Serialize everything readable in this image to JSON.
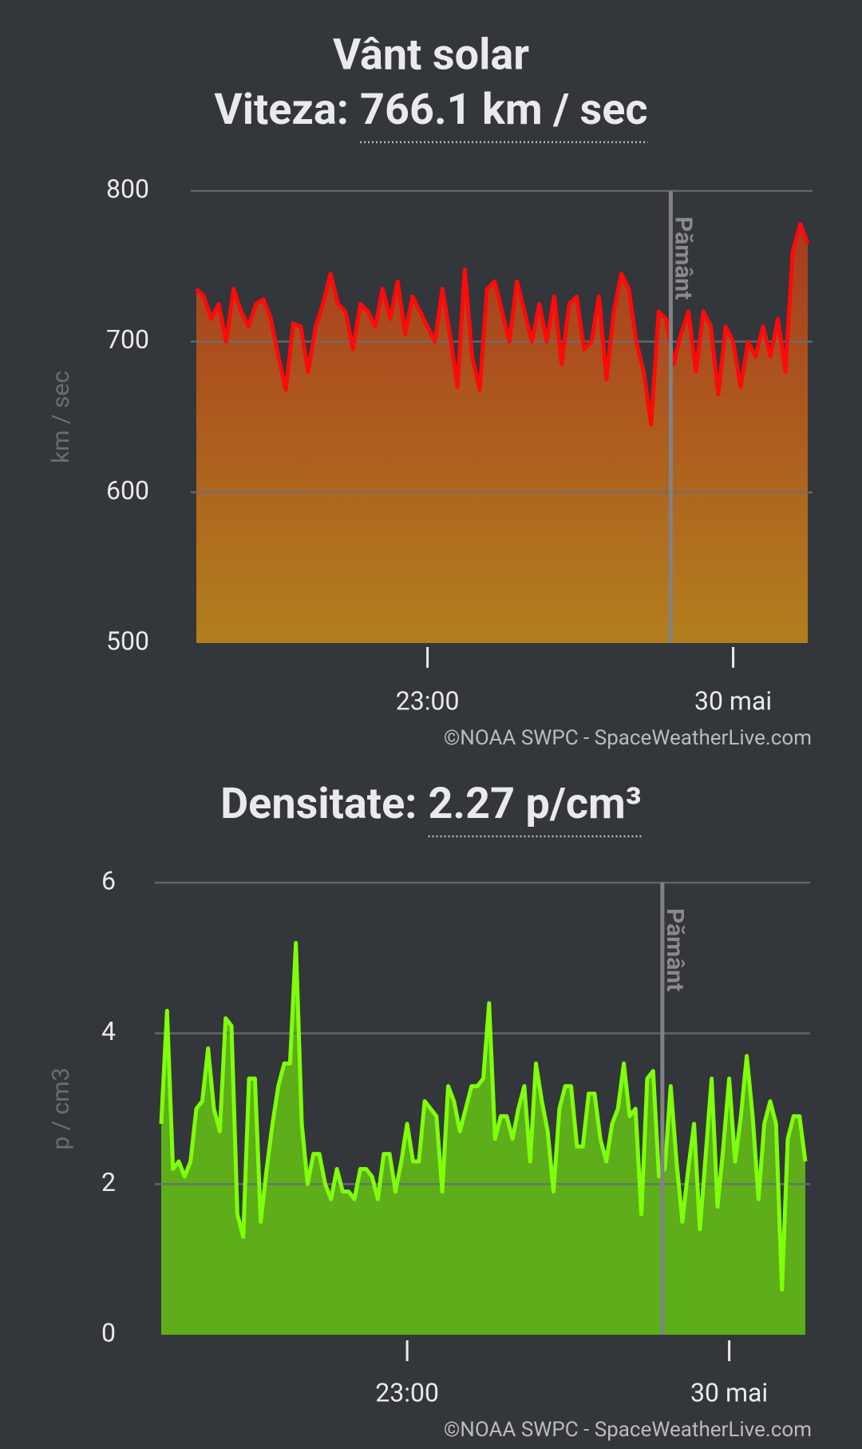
{
  "chart_data": [
    {
      "type": "area",
      "title": "Vânt solar",
      "subtitle_label": "Viteza:",
      "subtitle_value": "766.1 km / sec",
      "y_label": "km / sec",
      "marker_label": "Pământ",
      "source": "©NOAA SWPC - SpaceWeatherLive.com",
      "line_color": "#ff0a0a",
      "fill_colors": [
        "#a83a1f",
        "#b27f1d"
      ],
      "grid": true,
      "ylim": [
        500,
        800
      ],
      "yticks": [
        500,
        600,
        700,
        800
      ],
      "categories": [
        null,
        null,
        null,
        null,
        null,
        null,
        null,
        null,
        null,
        null,
        null,
        null,
        null,
        null,
        null,
        null,
        null,
        null,
        null,
        null,
        null,
        null,
        null,
        null,
        null,
        null,
        null,
        null,
        null,
        null,
        null,
        "23:00",
        null,
        null,
        null,
        null,
        null,
        null,
        null,
        null,
        null,
        null,
        null,
        null,
        null,
        null,
        null,
        null,
        null,
        null,
        null,
        null,
        null,
        null,
        null,
        null,
        null,
        null,
        null,
        null,
        null,
        null,
        null,
        null,
        null,
        null,
        null,
        null,
        null,
        null,
        null,
        null,
        "30 mai",
        null,
        null,
        null,
        null,
        null,
        null,
        null,
        null,
        null,
        null
      ],
      "values": [
        735,
        730,
        715,
        725,
        700,
        735,
        720,
        710,
        725,
        728,
        715,
        690,
        668,
        712,
        710,
        680,
        710,
        725,
        745,
        725,
        720,
        695,
        725,
        720,
        710,
        735,
        715,
        740,
        705,
        730,
        720,
        710,
        700,
        735,
        705,
        670,
        748,
        690,
        668,
        735,
        740,
        720,
        700,
        740,
        720,
        700,
        725,
        700,
        730,
        685,
        725,
        730,
        695,
        700,
        730,
        675,
        720,
        745,
        735,
        700,
        680,
        645,
        720,
        715,
        685,
        705,
        720,
        680,
        720,
        710,
        665,
        710,
        700,
        670,
        700,
        690,
        710,
        690,
        715,
        680,
        760,
        778,
        765
      ]
    },
    {
      "type": "area",
      "subtitle_label": "Densitate:",
      "subtitle_value": "2.27 p/cm³",
      "y_label": "p / cm3",
      "marker_label": "Pământ",
      "source": "©NOAA SWPC - SpaceWeatherLive.com",
      "line_color": "#7fff0a",
      "fill_colors": [
        "#5dae1a",
        "#5dae1a"
      ],
      "grid": true,
      "ylim": [
        0,
        6
      ],
      "yticks": [
        0,
        2,
        4,
        6
      ],
      "categories": [
        null,
        null,
        null,
        null,
        null,
        null,
        null,
        null,
        null,
        null,
        null,
        null,
        null,
        null,
        null,
        null,
        null,
        null,
        null,
        null,
        null,
        null,
        null,
        null,
        null,
        null,
        null,
        null,
        null,
        null,
        null,
        null,
        null,
        null,
        null,
        null,
        null,
        null,
        null,
        null,
        null,
        null,
        "23:00",
        null,
        null,
        null,
        null,
        null,
        null,
        null,
        null,
        null,
        null,
        null,
        null,
        null,
        null,
        null,
        null,
        null,
        null,
        null,
        null,
        null,
        null,
        null,
        null,
        null,
        null,
        null,
        null,
        null,
        null,
        null,
        null,
        null,
        null,
        null,
        null,
        null,
        null,
        null,
        null,
        null,
        null,
        null,
        null,
        null,
        null,
        null,
        null,
        null,
        null,
        null,
        null,
        null,
        null,
        "30 mai",
        null,
        null,
        null,
        null,
        null,
        null,
        null,
        null,
        null,
        null,
        null,
        null,
        null
      ],
      "values": [
        2.8,
        4.3,
        2.2,
        2.3,
        2.1,
        2.3,
        3.0,
        3.1,
        3.8,
        3.0,
        2.7,
        4.2,
        4.1,
        1.6,
        1.3,
        3.4,
        3.4,
        1.5,
        2.2,
        2.8,
        3.3,
        3.6,
        3.6,
        5.2,
        2.8,
        2.0,
        2.4,
        2.4,
        2.0,
        1.8,
        2.2,
        1.9,
        1.9,
        1.8,
        2.2,
        2.2,
        2.1,
        1.8,
        2.4,
        2.4,
        1.9,
        2.3,
        2.8,
        2.3,
        2.3,
        3.1,
        3.0,
        2.9,
        1.9,
        3.3,
        3.1,
        2.7,
        3.0,
        3.3,
        3.3,
        3.4,
        4.4,
        2.6,
        2.9,
        2.9,
        2.6,
        3.0,
        3.3,
        2.3,
        3.6,
        3.1,
        2.7,
        1.9,
        3.0,
        3.3,
        3.3,
        2.5,
        2.5,
        3.2,
        3.2,
        2.6,
        2.3,
        2.8,
        3.0,
        3.6,
        2.9,
        3.0,
        1.6,
        3.4,
        3.5,
        2.1,
        2.2,
        3.3,
        2.3,
        1.5,
        2.2,
        2.8,
        1.4,
        2.4,
        3.4,
        1.7,
        2.5,
        3.4,
        2.3,
        2.9,
        3.7,
        2.9,
        1.8,
        2.8,
        3.1,
        2.8,
        0.6,
        2.6,
        2.9,
        2.9,
        2.3
      ]
    }
  ]
}
